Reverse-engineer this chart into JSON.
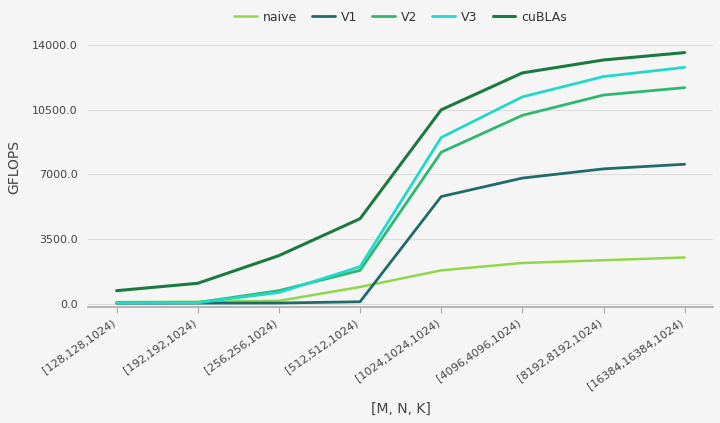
{
  "x_labels": [
    "[128,128,1024)",
    "[192,192,1024)",
    "[256,256,1024)",
    "[512,512,1024)",
    "[1024,1024,1024)",
    "[4096,4096,1024)",
    "[8192,8192,1024)",
    "[16384,16384,1024)"
  ],
  "series": {
    "naive": {
      "color": "#90d84a",
      "linewidth": 1.8,
      "values": [
        80,
        100,
        150,
        900,
        1800,
        2200,
        2350,
        2500
      ]
    },
    "V1": {
      "color": "#1f6b6b",
      "linewidth": 2.0,
      "values": [
        20,
        25,
        30,
        100,
        5800,
        6800,
        7300,
        7550
      ]
    },
    "V2": {
      "color": "#2db870",
      "linewidth": 2.0,
      "values": [
        50,
        60,
        700,
        1800,
        8200,
        10200,
        11300,
        11700
      ]
    },
    "V3": {
      "color": "#22d8cc",
      "linewidth": 2.0,
      "values": [
        40,
        50,
        600,
        2000,
        9000,
        11200,
        12300,
        12800
      ]
    },
    "cuBLAs": {
      "color": "#1a7a40",
      "linewidth": 2.2,
      "values": [
        700,
        1100,
        2600,
        4600,
        10500,
        12500,
        13200,
        13600
      ]
    }
  },
  "ylabel": "GFLOPS",
  "xlabel": "[M, N, K]",
  "yticks": [
    0.0,
    3500.0,
    7000.0,
    10500.0,
    14000.0
  ],
  "ylim": [
    -200,
    15000
  ],
  "background_color": "#f5f5f5",
  "grid_color": "#dddddd",
  "legend_order": [
    "naive",
    "V1",
    "V2",
    "V3",
    "cuBLAs"
  ],
  "tick_label_fontsize": 8,
  "axis_label_fontsize": 10
}
